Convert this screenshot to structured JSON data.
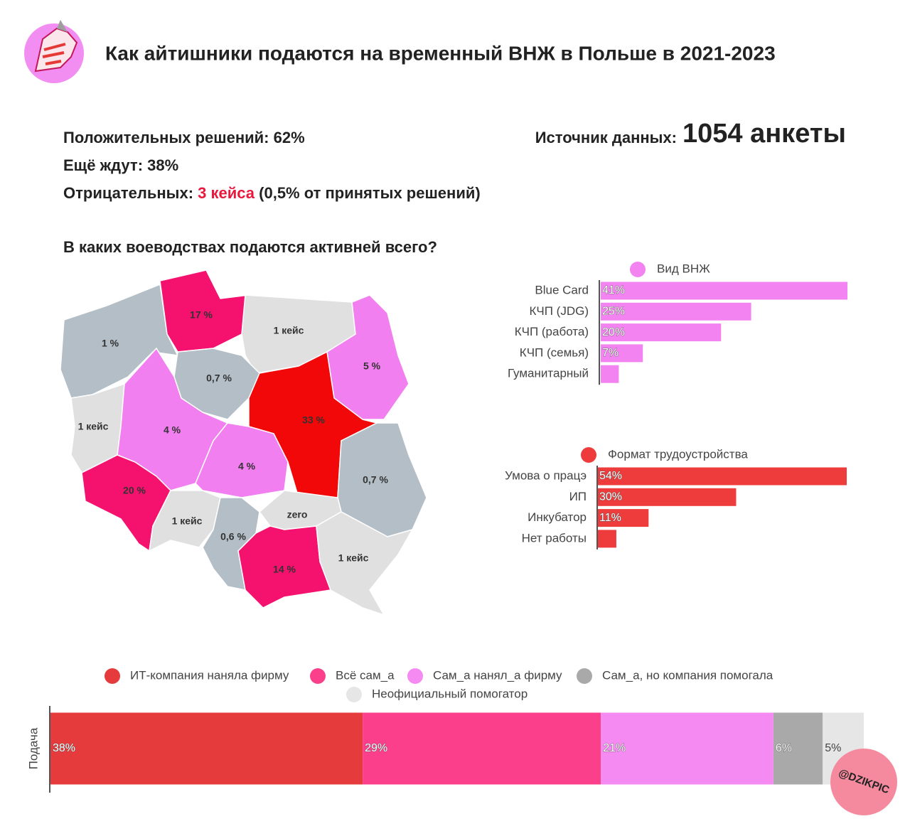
{
  "header": {
    "title": "Как айтишники подаются на временный ВНЖ в Польше в 2021-2023"
  },
  "stats": {
    "positive": "Положительных решений: 62%",
    "waiting": "Ещё ждут: 38%",
    "negative_label": "Отрицательных:",
    "negative_count": "3 кейса",
    "negative_note": "(0,5% от принятых решений)",
    "source_label": "Источник данных:",
    "source_value": "1054 анкеты"
  },
  "map": {
    "title": "В каких воеводствах подаются активней всего?",
    "regions": [
      {
        "label": "1 %",
        "color": "#b3bec6"
      },
      {
        "label": "17 %",
        "color": "#f5126f"
      },
      {
        "label": "1 кейс",
        "color": "#e0e0e0"
      },
      {
        "label": "5 %",
        "color": "#f27ff0"
      },
      {
        "label": "0,7 %",
        "color": "#b3bec6"
      },
      {
        "label": "1 кейс",
        "color": "#e0e0e0"
      },
      {
        "label": "4 %",
        "color": "#f27ff0"
      },
      {
        "label": "33 %",
        "color": "#f20808"
      },
      {
        "label": "4 %",
        "color": "#f27ff0"
      },
      {
        "label": "0,7 %",
        "color": "#b3bec6"
      },
      {
        "label": "20 %",
        "color": "#f5126f"
      },
      {
        "label": "1 кейс",
        "color": "#e0e0e0"
      },
      {
        "label": "0,6 %",
        "color": "#b3bec6"
      },
      {
        "label": "zero",
        "color": "#e0e0e0"
      },
      {
        "label": "14 %",
        "color": "#f5126f"
      },
      {
        "label": "1 кейс",
        "color": "#e0e0e0"
      }
    ]
  },
  "chart_data": [
    {
      "type": "barh",
      "categories": [
        "Blue Card",
        "КЧП (JDG)",
        "КЧП (работа)",
        "КЧП (семья)",
        "Гуманитарный"
      ],
      "series": [
        {
          "name": "Вид ВНЖ",
          "color": "#f283f0",
          "values": [
            41,
            25,
            20,
            7,
            3
          ],
          "value_labels": [
            "41%",
            "25%",
            "20%",
            "7%",
            null
          ]
        }
      ],
      "xlim": [
        0,
        41
      ]
    },
    {
      "type": "barh",
      "categories": [
        "Умова о працэ",
        "ИП",
        "Инкубатор",
        "Нет работы"
      ],
      "series": [
        {
          "name": "Формат трудоустройства",
          "color": "#ee3b3b",
          "values": [
            54,
            30,
            11,
            4
          ],
          "value_labels": [
            "54%",
            "30%",
            "11%",
            null
          ]
        }
      ],
      "xlim": [
        0,
        54
      ]
    },
    {
      "type": "stacked_barh",
      "categories": [
        "Подача"
      ],
      "series": [
        {
          "name": "ИТ-компания наняла фирму",
          "color": "#e53b3c",
          "values": [
            38
          ],
          "value_labels": [
            "38%"
          ]
        },
        {
          "name": "Всё сам_а",
          "color": "#fb3f8b",
          "values": [
            29
          ],
          "value_labels": [
            "29%"
          ]
        },
        {
          "name": "Сам_а нанял_а фирму",
          "color": "#f58af3",
          "values": [
            21
          ],
          "value_labels": [
            "21%"
          ]
        },
        {
          "name": "Сам_а, но компания помогала",
          "color": "#a9a9a9",
          "values": [
            6
          ],
          "value_labels": [
            "6%"
          ]
        },
        {
          "name": "Неофициальный помогатор",
          "color": "#e6e6e6",
          "values": [
            5
          ],
          "value_labels": [
            "5%"
          ]
        }
      ],
      "xlim": [
        0,
        99
      ]
    }
  ],
  "watermark": "@DZIKPIC"
}
